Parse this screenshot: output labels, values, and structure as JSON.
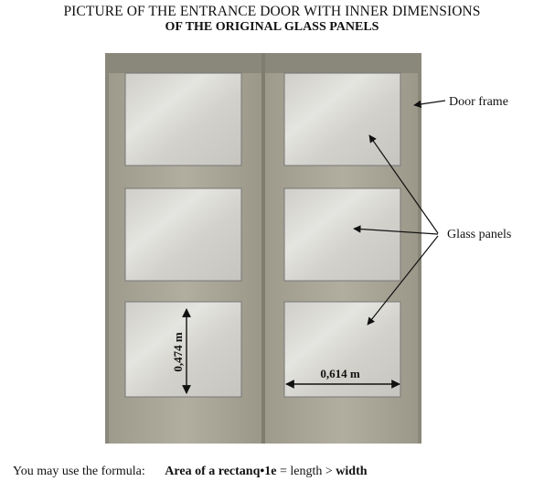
{
  "header": {
    "title_line1": "PICTURE OF THE ENTRANCE DOOR WITH INNER DIMENSIONS",
    "title_line2": "OF THE ORIGINAL GLASS PANELS"
  },
  "labels": {
    "door_frame": "Door frame",
    "glass_panels": "Glass panels"
  },
  "dimensions": {
    "height": "0,474 m",
    "width": "0,614 m"
  },
  "formula": {
    "lead": "You may use the formula:",
    "term_bold": "Area of a rectanq•1e",
    "equals_text": " = length > ",
    "last_bold": "width"
  },
  "colors": {
    "wood": "#a9a696",
    "wood_dark": "#8f8c7e",
    "glass": "#d4d3cd",
    "glass_light": "#e6e6e2"
  }
}
